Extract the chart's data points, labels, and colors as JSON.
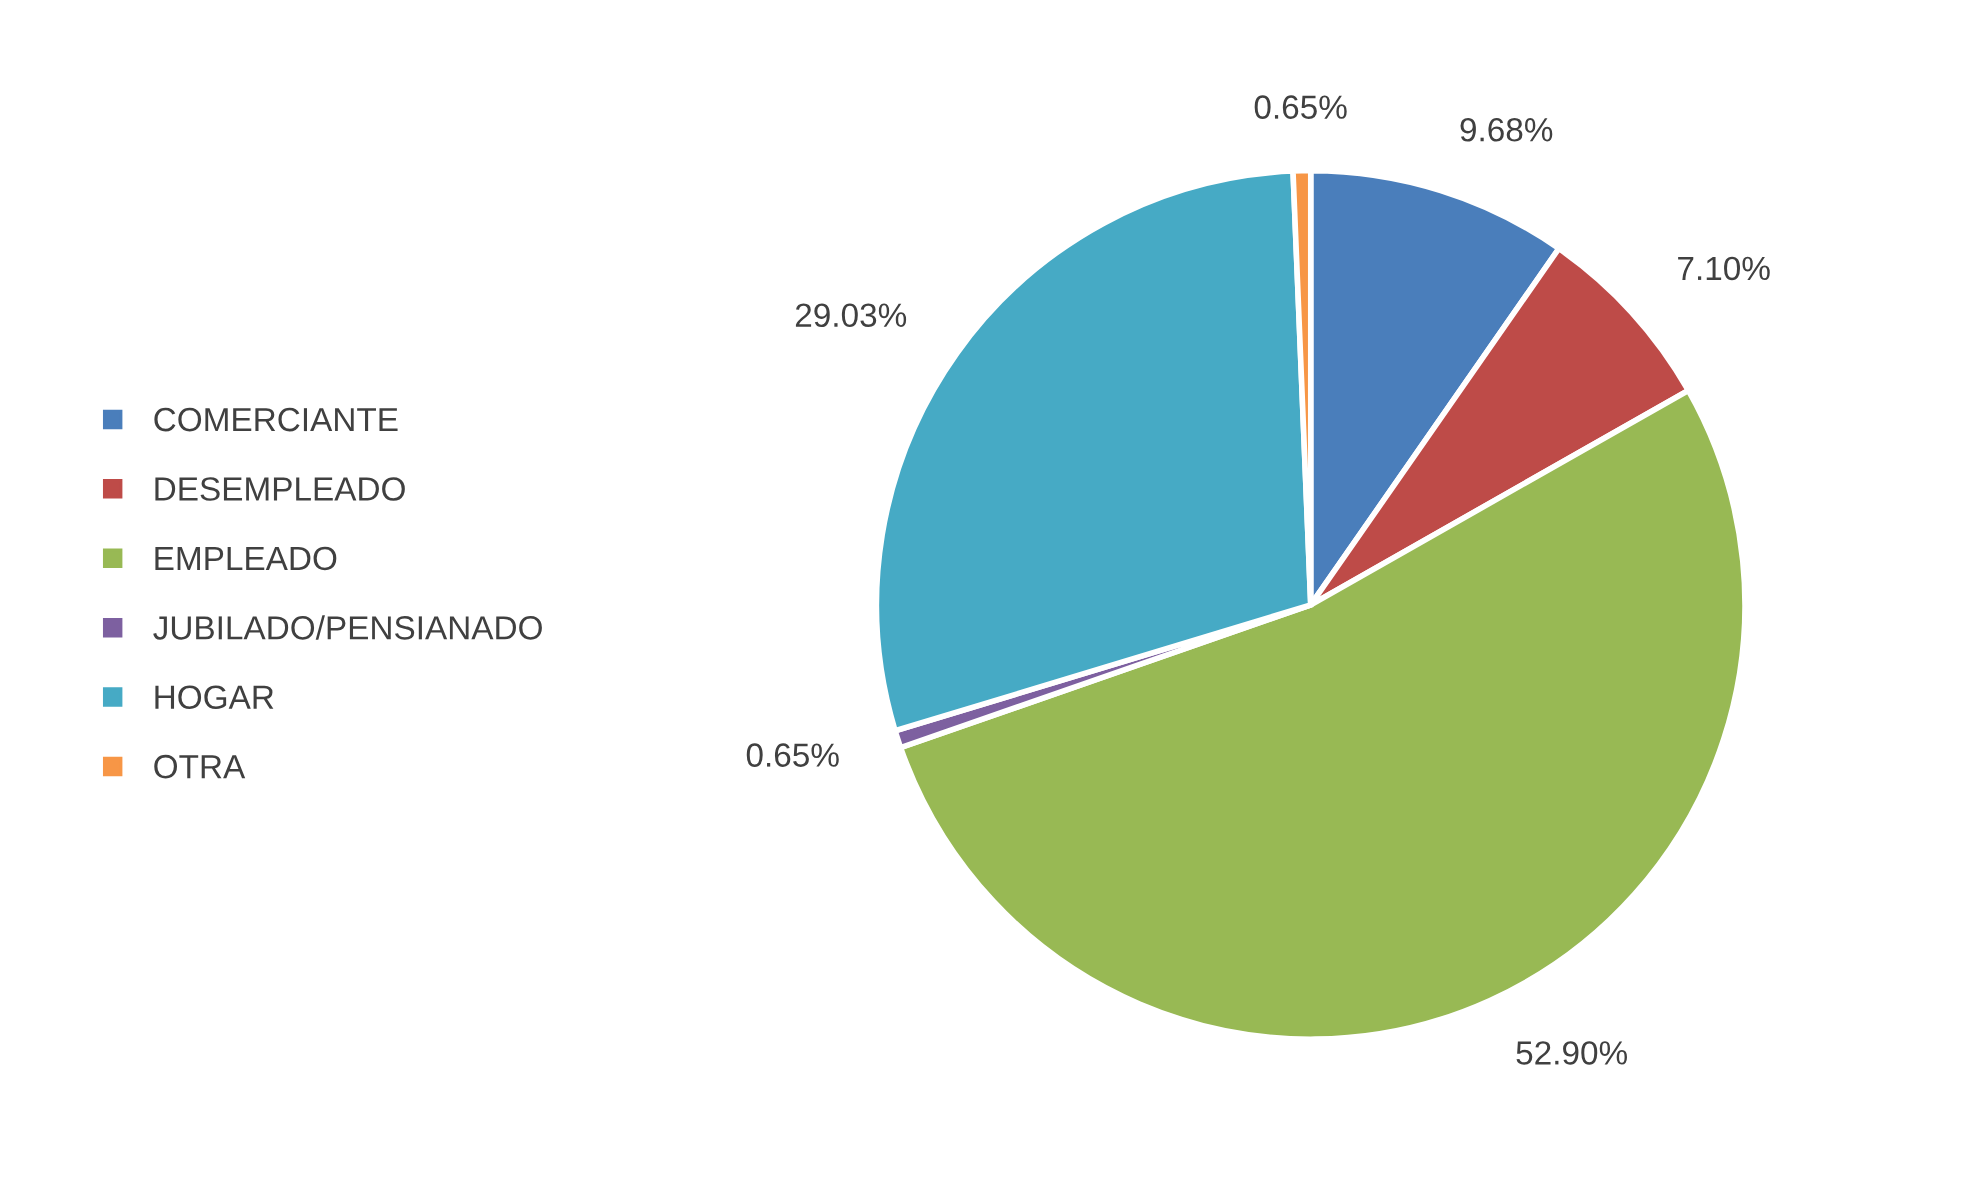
{
  "chart_data": {
    "type": "pie",
    "categories": [
      "COMERCIANTE",
      "DESEMPLEADO",
      "EMPLEADO",
      "JUBILADO/PENSIANADO",
      "HOGAR",
      "OTRA"
    ],
    "values": [
      9.68,
      7.1,
      52.9,
      0.65,
      29.03,
      0.65
    ],
    "colors": [
      "#4a7ebb",
      "#be4b48",
      "#98b954",
      "#7d60a0",
      "#46aac5",
      "#f79646"
    ],
    "value_labels": [
      "9.68%",
      "7.10%",
      "52.90%",
      "0.65%",
      "29.03%",
      "0.65%"
    ],
    "legend": "left"
  }
}
